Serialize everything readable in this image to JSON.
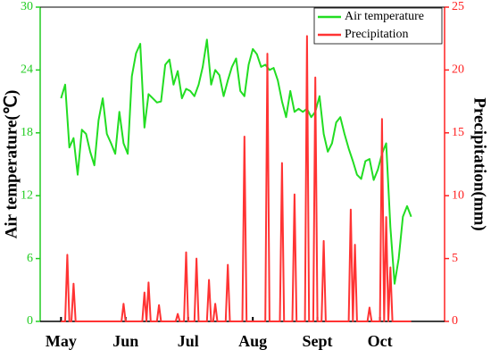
{
  "chart_data": {
    "type": "line",
    "xlim": [
      -10,
      184
    ],
    "xticks": [
      {
        "value": 0,
        "label": "May"
      },
      {
        "value": 31,
        "label": "Jun"
      },
      {
        "value": 61,
        "label": "Jul"
      },
      {
        "value": 92,
        "label": "Aug"
      },
      {
        "value": 123,
        "label": "Sept"
      },
      {
        "value": 153,
        "label": "Oct"
      }
    ],
    "ylabel": "Air temperature(℃)",
    "ylim": [
      0,
      30
    ],
    "yticks": [
      0,
      6,
      12,
      18,
      24,
      30
    ],
    "ycolor": "#22cc22",
    "y2label": "Precipitation(mm)",
    "y2lim": [
      0,
      25
    ],
    "y2ticks": [
      0,
      5,
      10,
      15,
      20,
      25
    ],
    "y2color": "#ff2222",
    "legend": "top-right",
    "series": [
      {
        "name": "Air temperature",
        "color": "#22dd22",
        "axis": "y",
        "x": [
          0,
          2,
          4,
          6,
          8,
          10,
          12,
          14,
          16,
          18,
          20,
          22,
          24,
          26,
          28,
          30,
          32,
          34,
          36,
          38,
          40,
          42,
          44,
          46,
          48,
          50,
          52,
          54,
          56,
          58,
          60,
          62,
          64,
          66,
          68,
          70,
          72,
          74,
          76,
          78,
          80,
          82,
          84,
          86,
          88,
          90,
          92,
          94,
          96,
          98,
          100,
          102,
          104,
          106,
          108,
          110,
          112,
          114,
          116,
          118,
          120,
          122,
          124,
          126,
          128,
          130,
          132,
          134,
          136,
          138,
          140,
          142,
          144,
          146,
          148,
          150,
          152,
          154,
          156,
          158,
          160,
          162,
          164,
          166,
          168
        ],
        "values": [
          21.3,
          22.6,
          16.6,
          17.5,
          14,
          18.3,
          17.9,
          16.2,
          14.9,
          19.2,
          21.3,
          17.9,
          17,
          16,
          20,
          17,
          16,
          23.4,
          25.6,
          26.5,
          18.5,
          21.7,
          21.3,
          20.9,
          21,
          24.5,
          25,
          22.6,
          23.9,
          21.3,
          22.2,
          22,
          21.5,
          22.6,
          24.3,
          26.9,
          22.6,
          24,
          23.5,
          21.5,
          23,
          24.3,
          25.1,
          22,
          21.5,
          24.5,
          26,
          25.5,
          24.3,
          24.5,
          24,
          24.2,
          23,
          21,
          19.5,
          22,
          20,
          20.3,
          20,
          20.3,
          19.5,
          20,
          21.5,
          17.9,
          16.2,
          17,
          19,
          19.5,
          17.9,
          16.5,
          15.3,
          14,
          13.6,
          15.3,
          15.5,
          13.5,
          14.5,
          16,
          17,
          9,
          3.6,
          6,
          10,
          11,
          10
        ]
      },
      {
        "name": "Precipitation",
        "color": "#ff3333",
        "axis": "y2",
        "x": [
          0,
          2,
          3,
          4,
          5,
          6,
          7,
          29,
          30,
          31,
          39,
          40,
          41,
          42,
          43,
          46,
          47,
          48,
          55,
          56,
          57,
          59,
          60,
          61,
          64,
          65,
          66,
          70,
          71,
          72,
          73,
          74,
          75,
          79,
          80,
          81,
          87,
          88,
          89,
          98,
          99,
          100,
          105,
          106,
          107,
          111,
          112,
          113,
          117,
          118,
          119,
          121,
          122,
          123,
          125,
          126,
          127,
          138,
          139,
          140,
          141,
          142,
          147,
          148,
          149,
          153,
          154,
          155,
          156,
          157,
          158,
          159,
          168
        ],
        "values": [
          0,
          0,
          5.3,
          0,
          0,
          3,
          0,
          0,
          1.4,
          0,
          0,
          2.3,
          0,
          3.1,
          0,
          0,
          1.3,
          0,
          0,
          0.6,
          0,
          0,
          5.5,
          0,
          0,
          5,
          0,
          0,
          3.3,
          0,
          0,
          1.4,
          0,
          0,
          4.5,
          0,
          0,
          14.7,
          0,
          0,
          21.3,
          0,
          0,
          12.6,
          0,
          0,
          10.1,
          0,
          0,
          22.7,
          0,
          0,
          19.4,
          0,
          0,
          6.4,
          0,
          0,
          8.9,
          0,
          6.1,
          0,
          0,
          1.1,
          0,
          0,
          16.1,
          0,
          8.3,
          0,
          4.3,
          0,
          0
        ]
      }
    ]
  }
}
